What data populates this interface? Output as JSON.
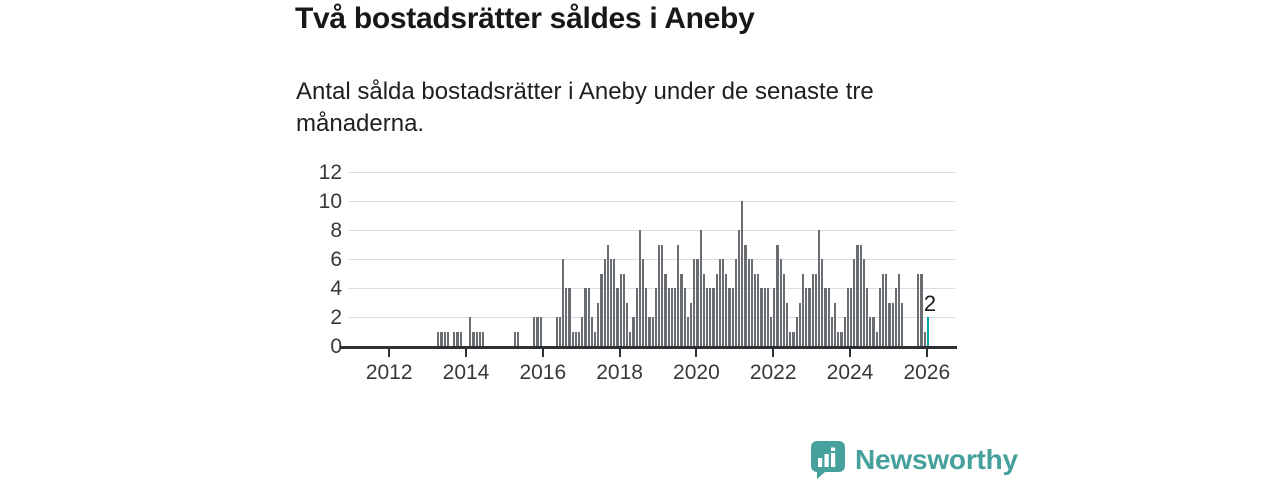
{
  "header": {
    "title": "Två bostadsrätter såldes i Aneby",
    "subtitle": "Antal sålda bostadsrätter i Aneby under de senaste tre månaderna."
  },
  "chart_data": {
    "type": "bar",
    "title": "Två bostadsrätter såldes i Aneby",
    "xlabel": "",
    "ylabel": "",
    "ylim": [
      0,
      12
    ],
    "yticks": [
      0,
      2,
      4,
      6,
      8,
      10,
      12
    ],
    "xticks": [
      2012,
      2014,
      2016,
      2018,
      2020,
      2022,
      2024,
      2026
    ],
    "grid": true,
    "x_start": "2011-01",
    "x_end": "2026-01",
    "bar_color": "#6a6e72",
    "highlight_color": "#00a3a3",
    "highlight_last_bar": true,
    "last_value_label": "2",
    "series_monthly": [
      {
        "year": 2011,
        "values": [
          0,
          0,
          0,
          0,
          0,
          0,
          0,
          0,
          0,
          0,
          0,
          0
        ]
      },
      {
        "year": 2012,
        "values": [
          0,
          0,
          0,
          0,
          0,
          0,
          0,
          0,
          0,
          0,
          0,
          0
        ]
      },
      {
        "year": 2013,
        "values": [
          0,
          0,
          0,
          1,
          1,
          1,
          1,
          0,
          1,
          1,
          1,
          0
        ]
      },
      {
        "year": 2014,
        "values": [
          0,
          2,
          1,
          1,
          1,
          1,
          0,
          0,
          0,
          0,
          0,
          0
        ]
      },
      {
        "year": 2015,
        "values": [
          0,
          0,
          0,
          1,
          1,
          0,
          0,
          0,
          0,
          2,
          2,
          2
        ]
      },
      {
        "year": 2016,
        "values": [
          0,
          0,
          0,
          0,
          2,
          2,
          6,
          4,
          4,
          1,
          1,
          1
        ]
      },
      {
        "year": 2017,
        "values": [
          2,
          4,
          4,
          2,
          1,
          3,
          5,
          6,
          7,
          6,
          6,
          4
        ]
      },
      {
        "year": 2018,
        "values": [
          5,
          5,
          3,
          1,
          2,
          4,
          8,
          6,
          4,
          2,
          2,
          4
        ]
      },
      {
        "year": 2019,
        "values": [
          7,
          7,
          5,
          4,
          4,
          4,
          7,
          5,
          4,
          2,
          3,
          6
        ]
      },
      {
        "year": 2020,
        "values": [
          6,
          8,
          5,
          4,
          4,
          4,
          5,
          6,
          6,
          5,
          4,
          4
        ]
      },
      {
        "year": 2021,
        "values": [
          6,
          8,
          10,
          7,
          6,
          6,
          5,
          5,
          4,
          4,
          4,
          2
        ]
      },
      {
        "year": 2022,
        "values": [
          4,
          7,
          6,
          5,
          3,
          1,
          1,
          2,
          3,
          5,
          4,
          4
        ]
      },
      {
        "year": 2023,
        "values": [
          5,
          5,
          8,
          6,
          4,
          4,
          2,
          3,
          1,
          1,
          2,
          4
        ]
      },
      {
        "year": 2024,
        "values": [
          4,
          6,
          7,
          7,
          6,
          4,
          2,
          2,
          1,
          4,
          5,
          5
        ]
      },
      {
        "year": 2025,
        "values": [
          3,
          3,
          4,
          5,
          3,
          0,
          0,
          0,
          0,
          5,
          5,
          1
        ]
      },
      {
        "year": 2026,
        "values": [
          2
        ]
      }
    ]
  },
  "annotation": {
    "last_point_label": "2"
  },
  "footer": {
    "brand": "Newsworthy",
    "brand_color": "#46a09b"
  }
}
